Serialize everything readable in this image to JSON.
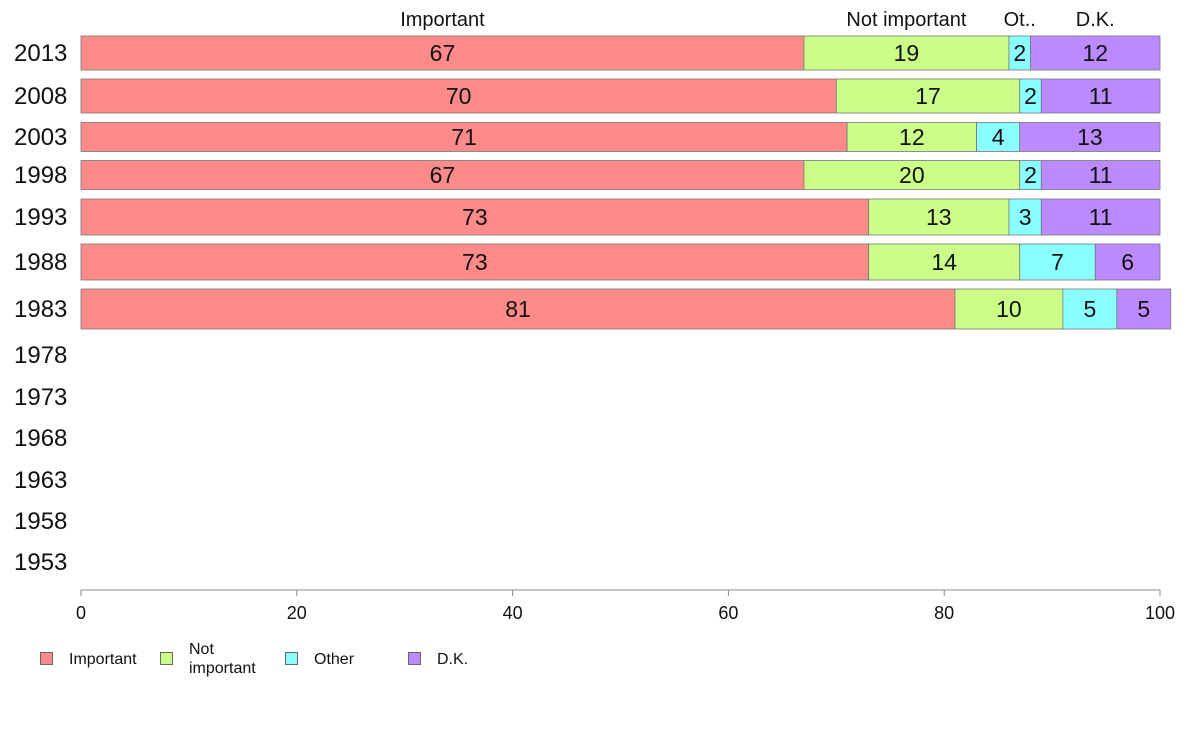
{
  "chart_data": {
    "type": "bar",
    "orientation": "horizontal",
    "stacked": true,
    "categories": [
      "2013",
      "2008",
      "2003",
      "1998",
      "1993",
      "1988",
      "1983",
      "1978",
      "1973",
      "1968",
      "1963",
      "1958",
      "1953"
    ],
    "series": [
      {
        "name": "Important",
        "color": "#ff8a8a",
        "values": [
          67,
          70,
          71,
          67,
          73,
          73,
          81,
          null,
          null,
          null,
          null,
          null,
          null
        ]
      },
      {
        "name": "Not important",
        "color": "#ccff8a",
        "values": [
          19,
          17,
          12,
          20,
          13,
          14,
          10,
          null,
          null,
          null,
          null,
          null,
          null
        ]
      },
      {
        "name": "Other",
        "color": "#8affff",
        "values": [
          2,
          2,
          4,
          2,
          3,
          7,
          5,
          null,
          null,
          null,
          null,
          null,
          null
        ]
      },
      {
        "name": "D.K.",
        "color": "#bb8aff",
        "values": [
          12,
          11,
          13,
          11,
          11,
          6,
          5,
          null,
          null,
          null,
          null,
          null,
          null
        ]
      }
    ],
    "top_labels": [
      "Important",
      "Not important",
      "Ot..",
      "D.K."
    ],
    "legend_labels": [
      "Important",
      "Not\nimportant",
      "Other",
      "D.K."
    ],
    "xlim": [
      0,
      100
    ],
    "xticks": [
      0,
      20,
      40,
      60,
      80,
      100
    ],
    "grid": false,
    "legend_position": "bottom-left",
    "title": "",
    "xlabel": "",
    "ylabel": ""
  }
}
